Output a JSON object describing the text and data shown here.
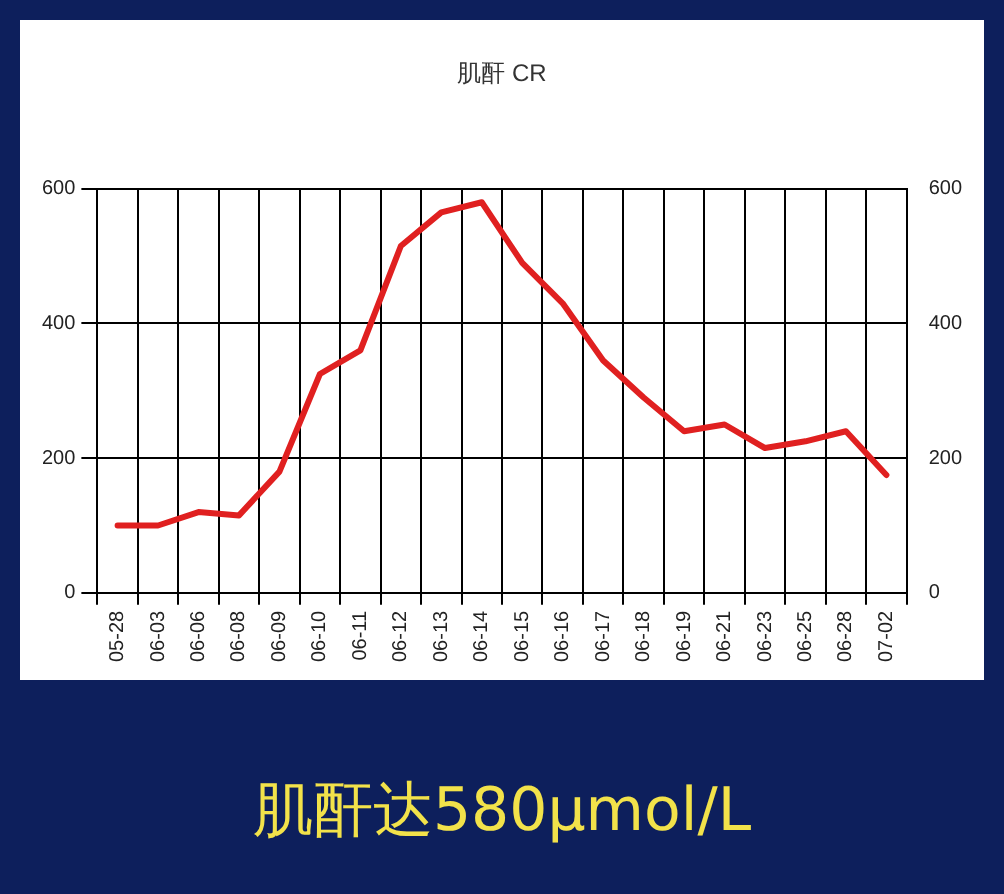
{
  "chart_data": {
    "type": "line",
    "title": "肌酐 CR",
    "categories": [
      "05-28",
      "06-03",
      "06-06",
      "06-08",
      "06-09",
      "06-10",
      "06-11",
      "06-12",
      "06-13",
      "06-14",
      "06-15",
      "06-16",
      "06-17",
      "06-18",
      "06-19",
      "06-21",
      "06-23",
      "06-25",
      "06-28",
      "07-02"
    ],
    "series": [
      {
        "color": "#e02020",
        "values": [
          100,
          100,
          120,
          115,
          180,
          325,
          360,
          515,
          565,
          580,
          490,
          430,
          345,
          290,
          240,
          250,
          215,
          225,
          240,
          175
        ]
      }
    ],
    "ylim": [
      0,
      600
    ],
    "yticks": [
      0,
      200,
      400,
      600
    ],
    "y2lim": [
      0,
      600
    ],
    "y2ticks": [
      0,
      200,
      400,
      600
    ],
    "grid": true,
    "legend": false,
    "marker": "none",
    "line_style": "solid",
    "annotations": [
      "肌酐达580μmol/L"
    ]
  }
}
